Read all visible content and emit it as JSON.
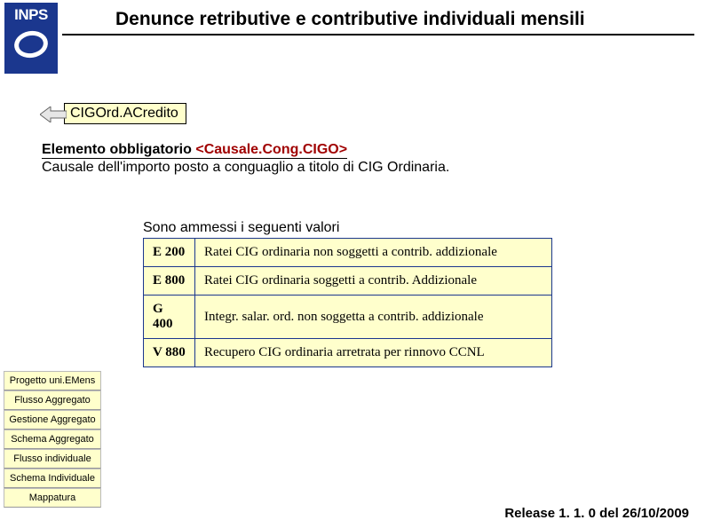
{
  "logo": {
    "text": "INPS"
  },
  "header": {
    "title": "Denunce retributive e contributive individuali mensili"
  },
  "breadcrumb": {
    "label": "CIGOrd.ACredito"
  },
  "description": {
    "line1_prefix": "Elemento obbligatorio ",
    "line1_tag": "<Causale.Cong.CIGO>",
    "line2": "Causale dell'importo posto a conguaglio a titolo di CIG Ordinaria."
  },
  "values": {
    "intro": "Sono ammessi i seguenti valori",
    "rows": [
      {
        "code": "E 200",
        "text": "Ratei CIG ordinaria non soggetti a contrib. addizionale"
      },
      {
        "code": "E 800",
        "text": "Ratei CIG ordinaria soggetti a contrib. Addizionale"
      },
      {
        "code": "G 400",
        "text": "Integr. salar. ord. non soggetta a contrib. addizionale"
      },
      {
        "code": "V 880",
        "text": "Recupero CIG ordinaria arretrata per rinnovo CCNL"
      }
    ]
  },
  "sidebar": {
    "items": [
      "Progetto uni.EMens",
      "Flusso Aggregato",
      "Gestione Aggregato",
      "Schema Aggregato",
      "Flusso individuale",
      "Schema Individuale",
      "Mappatura"
    ]
  },
  "footer": {
    "release": "Release 1. 1. 0 del 26/10/2009"
  },
  "colors": {
    "brand": "#1b378e",
    "boxfill": "#ffffcc",
    "tagtext": "#a00000"
  }
}
